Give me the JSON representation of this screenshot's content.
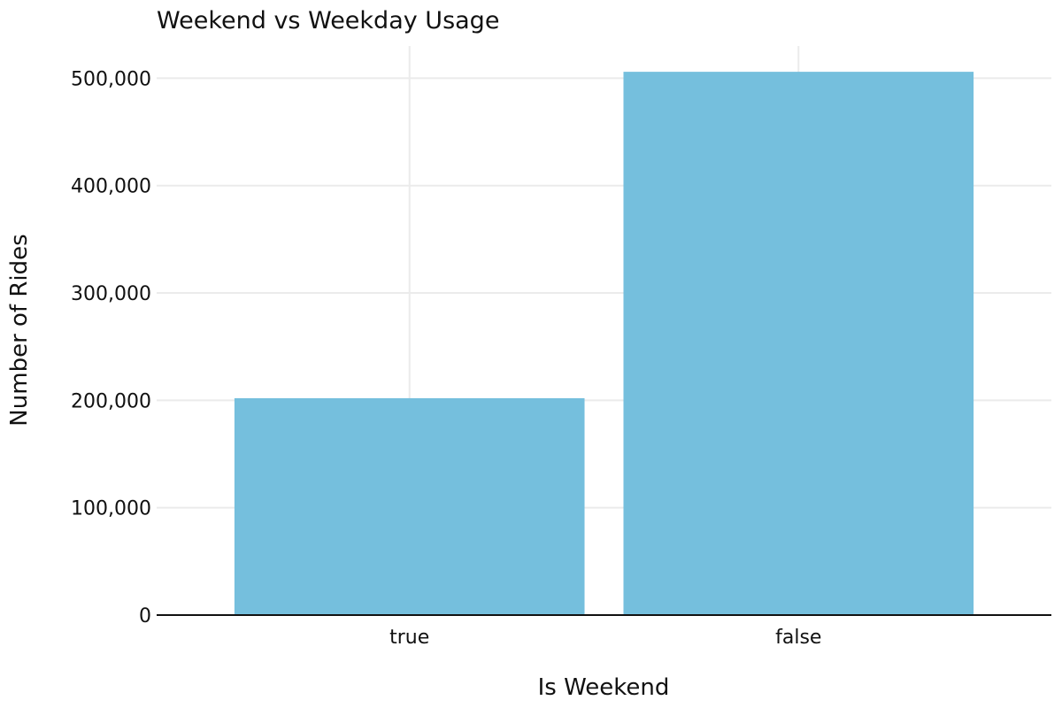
{
  "chart_data": {
    "type": "bar",
    "title": "Weekend vs Weekday Usage",
    "xlabel": "Is Weekend",
    "ylabel": "Number of Rides",
    "categories": [
      "true",
      "false"
    ],
    "values": [
      202000,
      506000
    ],
    "ylim": [
      0,
      530000
    ],
    "yticks": [
      0,
      100000,
      200000,
      300000,
      400000,
      500000
    ],
    "ytick_labels": [
      "0",
      "100,000",
      "200,000",
      "300,000",
      "400,000",
      "500,000"
    ],
    "grid": true,
    "legend": "none",
    "bar_color": "#75bfdd"
  }
}
